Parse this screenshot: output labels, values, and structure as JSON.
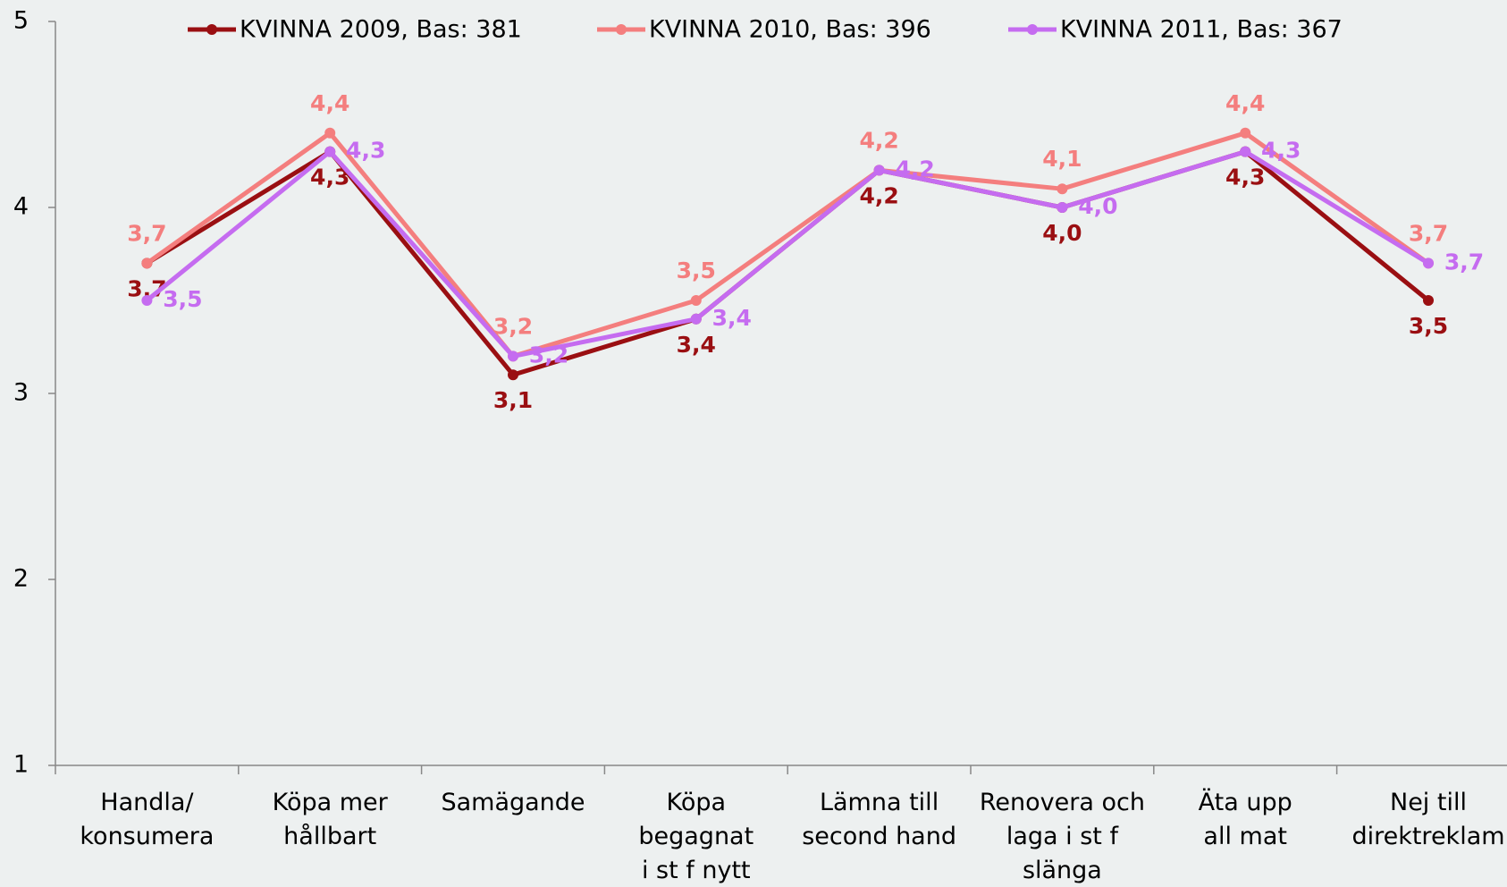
{
  "chart_data": {
    "type": "line",
    "categories": [
      [
        "Handla/",
        "konsumera"
      ],
      [
        "Köpa mer",
        "hållbart"
      ],
      [
        "Samägande"
      ],
      [
        "Köpa",
        "begagnat",
        "i st f nytt"
      ],
      [
        "Lämna till",
        "second hand"
      ],
      [
        "Renovera och",
        "laga i st f",
        "slänga"
      ],
      [
        "Äta upp",
        "all mat"
      ],
      [
        "Nej till",
        "direktreklam"
      ]
    ],
    "series": [
      {
        "name": "KVINNA 2009, Bas: 381",
        "color": "#9a0f12",
        "values": [
          3.7,
          4.3,
          3.1,
          3.4,
          4.2,
          4.0,
          4.3,
          3.5
        ],
        "value_labels": [
          "3,7",
          "4,3",
          "3,1",
          "3,4",
          "4,2",
          "4,0",
          "4,3",
          "3,5"
        ]
      },
      {
        "name": "KVINNA 2010, Bas: 396",
        "color": "#f47e7e",
        "values": [
          3.7,
          4.4,
          3.2,
          3.5,
          4.2,
          4.1,
          4.4,
          3.7
        ],
        "value_labels": [
          "3,7",
          "4,4",
          "3,2",
          "3,5",
          "4,2",
          "4,1",
          "4,4",
          "3,7"
        ]
      },
      {
        "name": "KVINNA 2011, Bas: 367",
        "color": "#c56cf0",
        "values": [
          3.5,
          4.3,
          3.2,
          3.4,
          4.2,
          4.0,
          4.3,
          3.7
        ],
        "value_labels": [
          "3,5",
          "4,3",
          "3,2",
          "3,4",
          "4,2",
          "4,0",
          "4,3",
          "3,7"
        ]
      }
    ],
    "ylim": [
      1,
      5
    ],
    "yticks": [
      1,
      2,
      3,
      4,
      5
    ],
    "legend": "top"
  }
}
